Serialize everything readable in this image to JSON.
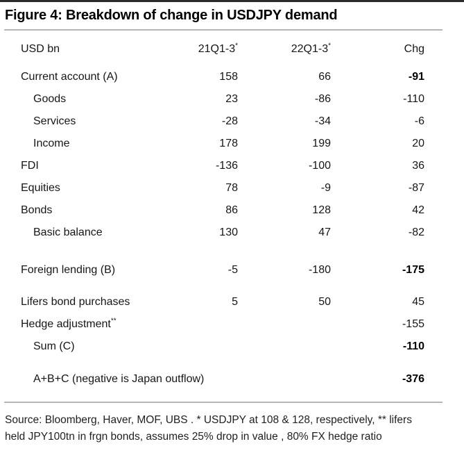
{
  "figure": {
    "title": "Figure 4: Breakdown of change in USDJPY demand"
  },
  "colors": {
    "top_rule": "#2b2b2b",
    "gray_rule": "#b5b5b5",
    "text": "#161616"
  },
  "table": {
    "header": {
      "label": "USD bn",
      "cols": [
        {
          "text": "21Q1-3",
          "sup": "*"
        },
        {
          "text": "22Q1-3",
          "sup": "*"
        },
        {
          "text": "Chg",
          "sup": ""
        }
      ]
    },
    "groups": [
      {
        "name": "current-account-block",
        "rows": [
          {
            "label": "Current account (A)",
            "sup": "",
            "indent": false,
            "v1": "158",
            "v2": "66",
            "chg": "-91",
            "bold_chg": true
          },
          {
            "label": "Goods",
            "sup": "",
            "indent": true,
            "v1": "23",
            "v2": "-86",
            "chg": "-110",
            "bold_chg": false
          },
          {
            "label": "Services",
            "sup": "",
            "indent": true,
            "v1": "-28",
            "v2": "-34",
            "chg": "-6",
            "bold_chg": false
          },
          {
            "label": "Income",
            "sup": "",
            "indent": true,
            "v1": "178",
            "v2": "199",
            "chg": "20",
            "bold_chg": false
          },
          {
            "label": "FDI",
            "sup": "",
            "indent": false,
            "v1": "-136",
            "v2": "-100",
            "chg": "36",
            "bold_chg": false
          },
          {
            "label": "Equities",
            "sup": "",
            "indent": false,
            "v1": "78",
            "v2": "-9",
            "chg": "-87",
            "bold_chg": false
          },
          {
            "label": "Bonds",
            "sup": "",
            "indent": false,
            "v1": "86",
            "v2": "128",
            "chg": "42",
            "bold_chg": false
          },
          {
            "label": "Basic balance",
            "sup": "",
            "indent": true,
            "v1": "130",
            "v2": "47",
            "chg": "-82",
            "bold_chg": false
          }
        ]
      },
      {
        "name": "foreign-lending-block",
        "rows": [
          {
            "label": "Foreign lending (B)",
            "sup": "",
            "indent": false,
            "v1": "-5",
            "v2": "-180",
            "chg": "-175",
            "bold_chg": true
          }
        ]
      },
      {
        "name": "lifers-block",
        "rows": [
          {
            "label": "Lifers bond purchases",
            "sup": "",
            "indent": false,
            "v1": "5",
            "v2": "50",
            "chg": "45",
            "bold_chg": false
          },
          {
            "label": "Hedge adjustment",
            "sup": "**",
            "indent": false,
            "v1": "",
            "v2": "",
            "chg": "-155",
            "bold_chg": false
          },
          {
            "label": "Sum (C)",
            "sup": "",
            "indent": true,
            "v1": "",
            "v2": "",
            "chg": "-110",
            "bold_chg": true
          }
        ]
      },
      {
        "name": "total-block",
        "rows": [
          {
            "label": "A+B+C (negative is Japan outflow)",
            "sup": "",
            "indent": true,
            "v1": "",
            "v2": "",
            "chg": "-376",
            "bold_chg": true
          }
        ]
      }
    ]
  },
  "source": {
    "lines": [
      "Source: Bloomberg, Haver, MOF, UBS . * USDJPY at 108 & 128, respectively, ** lifers",
      "held JPY100tn in frgn bonds, assumes 25% drop in value , 80% FX hedge ratio"
    ]
  }
}
